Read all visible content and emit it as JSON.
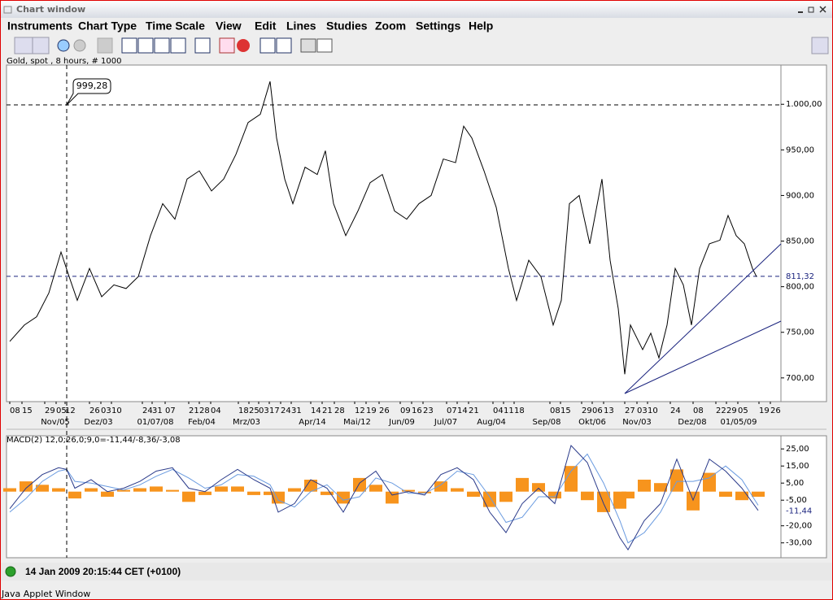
{
  "window": {
    "title": "Chart window"
  },
  "menu": [
    "Instruments",
    "Chart Type",
    "Time Scale",
    "View",
    "Edit",
    "Lines",
    "Studies",
    "Zoom",
    "Settings",
    "Help"
  ],
  "instrument_label": "Gold, spot , 8 hours, # 1000",
  "chart_data": [
    {
      "type": "line",
      "color": "#000000",
      "x": [
        12,
        30,
        45,
        60,
        75,
        85,
        95,
        110,
        125,
        140,
        155,
        170,
        185,
        200,
        215,
        230,
        245,
        260,
        275,
        290,
        305,
        320,
        332,
        340,
        350,
        360,
        375,
        390,
        400,
        410,
        425,
        440,
        455,
        470,
        485,
        500,
        515,
        530,
        545,
        560,
        570,
        580,
        595,
        610,
        625,
        635,
        650,
        665,
        680,
        690,
        700,
        712,
        725,
        740,
        750,
        760,
        768,
        775,
        790,
        800,
        810,
        820,
        830,
        840,
        850,
        860,
        872,
        885,
        895,
        905,
        915,
        925,
        930
      ],
      "values": [
        740,
        758,
        767,
        793,
        838,
        811,
        785,
        820,
        789,
        802,
        798,
        811,
        856,
        891,
        874,
        918,
        927,
        905,
        918,
        945,
        980,
        989,
        1025,
        963,
        918,
        891,
        931,
        923,
        949,
        891,
        856,
        883,
        914,
        923,
        883,
        874,
        891,
        900,
        940,
        936,
        976,
        963,
        927,
        887,
        820,
        785,
        829,
        811,
        758,
        785,
        891,
        900,
        847,
        918,
        829,
        776,
        704,
        758,
        731,
        749,
        722,
        758,
        820,
        802,
        758,
        820,
        847,
        851,
        878,
        856,
        847,
        820,
        811
      ],
      "xlim": [
        8,
        960
      ],
      "ylim": [
        674,
        1043
      ],
      "yticks": [
        {
          "value": 700,
          "label": "700,00"
        },
        {
          "value": 750,
          "label": "750,00"
        },
        {
          "value": 800,
          "label": "800,00"
        },
        {
          "value": 850,
          "label": "850,00"
        },
        {
          "value": 900,
          "label": "900,00"
        },
        {
          "value": 950,
          "label": "950,00"
        },
        {
          "value": 1000,
          "label": "1.000,00"
        }
      ],
      "xticks": [
        {
          "value": 12,
          "label": "08"
        },
        {
          "value": 27,
          "label": "15"
        },
        {
          "value": 55,
          "label": "29"
        },
        {
          "value": 69,
          "label": "05"
        },
        {
          "value": 80,
          "label": "12"
        },
        {
          "value": 110,
          "label": "26"
        },
        {
          "value": 124,
          "label": "03"
        },
        {
          "value": 137,
          "label": "10"
        },
        {
          "value": 175,
          "label": "24"
        },
        {
          "value": 187,
          "label": "31"
        },
        {
          "value": 203,
          "label": "07"
        },
        {
          "value": 232,
          "label": "21"
        },
        {
          "value": 245,
          "label": "28"
        },
        {
          "value": 259,
          "label": "04"
        },
        {
          "value": 293,
          "label": "18"
        },
        {
          "value": 306,
          "label": "25"
        },
        {
          "value": 318,
          "label": "03"
        },
        {
          "value": 331,
          "label": "17"
        },
        {
          "value": 345,
          "label": "24"
        },
        {
          "value": 358,
          "label": "31"
        },
        {
          "value": 382,
          "label": "14"
        },
        {
          "value": 396,
          "label": "21"
        },
        {
          "value": 411,
          "label": "28"
        },
        {
          "value": 436,
          "label": "12"
        },
        {
          "value": 450,
          "label": "19"
        },
        {
          "value": 466,
          "label": "26"
        },
        {
          "value": 492,
          "label": "09"
        },
        {
          "value": 506,
          "label": "16"
        },
        {
          "value": 520,
          "label": "23"
        },
        {
          "value": 549,
          "label": "07"
        },
        {
          "value": 562,
          "label": "14"
        },
        {
          "value": 576,
          "label": "21"
        },
        {
          "value": 606,
          "label": "04"
        },
        {
          "value": 619,
          "label": "11"
        },
        {
          "value": 632,
          "label": "18"
        },
        {
          "value": 676,
          "label": "08"
        },
        {
          "value": 689,
          "label": "15"
        },
        {
          "value": 715,
          "label": "29"
        },
        {
          "value": 728,
          "label": "06"
        },
        {
          "value": 742,
          "label": "13"
        },
        {
          "value": 768,
          "label": "27"
        },
        {
          "value": 783,
          "label": "03"
        },
        {
          "value": 796,
          "label": "10"
        },
        {
          "value": 824,
          "label": "24"
        },
        {
          "value": 852,
          "label": "08"
        },
        {
          "value": 880,
          "label": "22"
        },
        {
          "value": 893,
          "label": "29"
        },
        {
          "value": 907,
          "label": "05"
        },
        {
          "value": 933,
          "label": "19"
        },
        {
          "value": 947,
          "label": "26"
        }
      ],
      "month_ticks": [
        {
          "value": 68,
          "label": "Nov/05"
        },
        {
          "value": 121,
          "label": "Dez/03"
        },
        {
          "value": 191,
          "label": "01/07/08"
        },
        {
          "value": 248,
          "label": "Feb/04"
        },
        {
          "value": 303,
          "label": "Mrz/03"
        },
        {
          "value": 384,
          "label": "Apr/14"
        },
        {
          "value": 439,
          "label": "Mai/12"
        },
        {
          "value": 494,
          "label": "Jun/09"
        },
        {
          "value": 548,
          "label": "Jul/07"
        },
        {
          "value": 604,
          "label": "Aug/04"
        },
        {
          "value": 672,
          "label": "Sep/08"
        },
        {
          "value": 728,
          "label": "Okt/06"
        },
        {
          "value": 783,
          "label": "Nov/03"
        },
        {
          "value": 851,
          "label": "Dez/08"
        },
        {
          "value": 908,
          "label": "01/05/09"
        }
      ],
      "annotations": [
        {
          "value": 999.28,
          "label": "999,28",
          "position": "callout"
        },
        {
          "value": 811.32,
          "label": "811,32",
          "position": "axis"
        }
      ]
    },
    {
      "type": "line",
      "title_parts": [
        {
          "text": "MACD(2) 12,0;26,0;9,0=-11,44",
          "color": "#2a3a8a"
        },
        {
          "text": "/-8,36",
          "color": "#2e8b8b"
        },
        {
          "text": "/-3,08",
          "color": "#e0900e"
        }
      ],
      "x": [
        12,
        32,
        52,
        72,
        82,
        92,
        112,
        132,
        152,
        172,
        192,
        212,
        232,
        252,
        272,
        292,
        312,
        332,
        342,
        362,
        382,
        402,
        422,
        442,
        462,
        482,
        502,
        522,
        542,
        562,
        582,
        602,
        622,
        642,
        662,
        682,
        702,
        722,
        742,
        762,
        772,
        792,
        812,
        832,
        852,
        872,
        892,
        912,
        932
      ],
      "series": [
        {
          "style": "bar",
          "color": "#f7941d",
          "values": [
            2,
            6,
            4,
            2,
            0,
            -4,
            2,
            -3,
            1,
            2,
            3,
            1,
            -6,
            -2,
            3,
            3,
            -2,
            -2,
            -7,
            2,
            7,
            -2,
            -7,
            8,
            4,
            -7,
            1,
            -1,
            6,
            2,
            -3,
            -9,
            -6,
            8,
            5,
            -4,
            15,
            -5,
            -12,
            -10,
            -4,
            7,
            5,
            13,
            -11,
            11,
            -3,
            -5,
            -3
          ]
        },
        {
          "style": "line",
          "color": "#6a9be0",
          "values": [
            -12,
            -4,
            6,
            12,
            13,
            6,
            5,
            3,
            1,
            4,
            9,
            13,
            8,
            2,
            4,
            10,
            9,
            4,
            -5,
            -9,
            0,
            4,
            -5,
            -3,
            8,
            5,
            -1,
            -1,
            4,
            12,
            10,
            -3,
            -18,
            -15,
            -3,
            -3,
            12,
            22,
            5,
            -17,
            -30,
            -24,
            -12,
            6,
            6,
            8,
            15,
            7,
            -8
          ]
        },
        {
          "style": "line",
          "color": "#2a3a8a",
          "values": [
            -10,
            2,
            10,
            14,
            13,
            2,
            7,
            0,
            2,
            6,
            12,
            14,
            2,
            0,
            7,
            13,
            7,
            2,
            -12,
            -7,
            7,
            2,
            -12,
            5,
            12,
            -2,
            0,
            -2,
            10,
            14,
            7,
            -12,
            -24,
            -7,
            2,
            -7,
            27,
            17,
            -7,
            -27,
            -34,
            -17,
            -7,
            19,
            -5,
            19,
            12,
            2,
            -11
          ]
        }
      ],
      "xlim": [
        8,
        960
      ],
      "ylim": [
        -38.7,
        32.7
      ],
      "yticks": [
        {
          "value": 25,
          "label": "25,00"
        },
        {
          "value": 15,
          "label": "15,00"
        },
        {
          "value": 5,
          "label": "5,00"
        },
        {
          "value": -5,
          "label": "-5,00"
        },
        {
          "value": -20,
          "label": "-20,00"
        },
        {
          "value": -30,
          "label": "-30,00"
        }
      ],
      "annotations": [
        {
          "value": -11.44,
          "label": "-11,44",
          "position": "axis"
        }
      ]
    }
  ],
  "status": {
    "time": "14 Jan 2009 20:15:44 CET (+0100)"
  },
  "footer": "Java Applet Window"
}
